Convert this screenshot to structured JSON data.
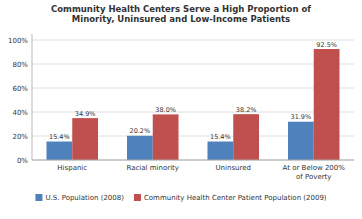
{
  "chart_data": {
    "type": "bar",
    "title": "Community Health Centers Serve a High Proportion of\nMinority, Uninsured and Low-Income Patients",
    "categories": [
      "Hispanic",
      "Racial minority",
      "Uninsured",
      "At or Below 200%\nof Poverty"
    ],
    "series": [
      {
        "name": "U.S. Population (2008)",
        "color": "#4F81BD",
        "values": [
          15.4,
          20.2,
          15.4,
          31.9
        ],
        "value_labels": [
          "15.4%",
          "20.2%",
          "15.4%",
          "31.9%"
        ]
      },
      {
        "name": "Community Health Center Patient Population (2009)",
        "color": "#C0504D",
        "values": [
          34.9,
          38.0,
          38.2,
          92.5
        ],
        "value_labels": [
          "34.9%",
          "38.0%",
          "38.2%",
          "92.5%"
        ]
      }
    ],
    "ylim": [
      0,
      105
    ],
    "yticks": [
      {
        "value": 0,
        "label": "0%"
      },
      {
        "value": 20,
        "label": "20%"
      },
      {
        "value": 40,
        "label": "40%"
      },
      {
        "value": 60,
        "label": "60%"
      },
      {
        "value": 80,
        "label": "80%"
      },
      {
        "value": 100,
        "label": "100%"
      }
    ],
    "grid": true,
    "data_labels": true,
    "legend": "bottom"
  }
}
